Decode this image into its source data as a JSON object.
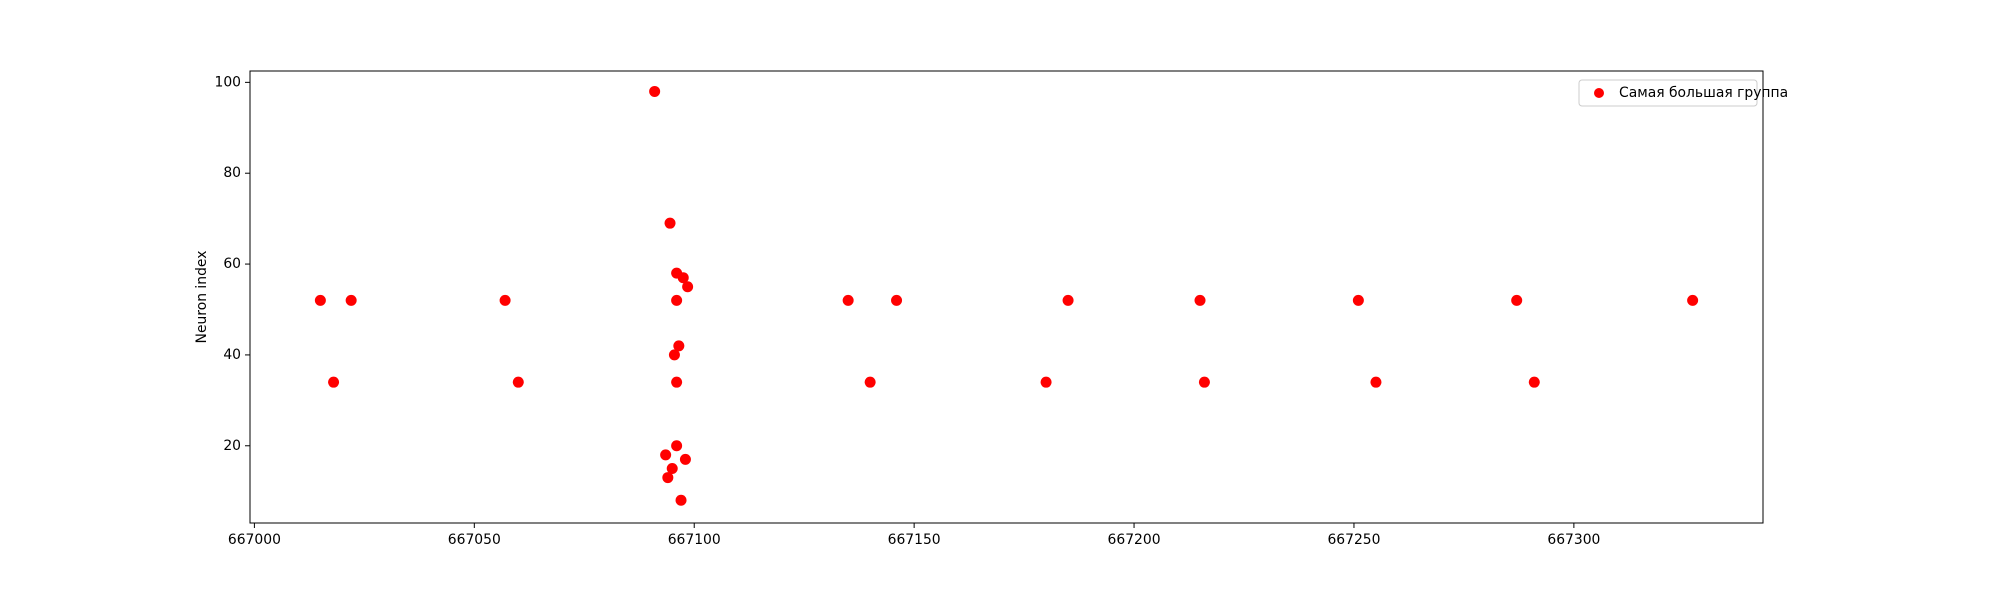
{
  "chart_data": {
    "type": "scatter",
    "title": "",
    "xlabel": "",
    "ylabel": "Neuron index",
    "xlim": [
      666999,
      667343
    ],
    "ylim": [
      3,
      102.5
    ],
    "x_ticks": [
      667000,
      667050,
      667100,
      667150,
      667200,
      667250,
      667300
    ],
    "x_tick_labels": [
      "667000",
      "667050",
      "667100",
      "667150",
      "667200",
      "667250",
      "667300"
    ],
    "y_ticks": [
      20,
      40,
      60,
      80,
      100
    ],
    "y_tick_labels": [
      "20",
      "40",
      "60",
      "80",
      "100"
    ],
    "grid": false,
    "legend": {
      "position": "upper right",
      "entries": [
        "Самая большая группа"
      ]
    },
    "series": [
      {
        "name": "Самая большая группа",
        "color": "#ff0000",
        "points": [
          {
            "x": 667015,
            "y": 52
          },
          {
            "x": 667018,
            "y": 34
          },
          {
            "x": 667022,
            "y": 52
          },
          {
            "x": 667057,
            "y": 52
          },
          {
            "x": 667060,
            "y": 34
          },
          {
            "x": 667091,
            "y": 98
          },
          {
            "x": 667093.5,
            "y": 18
          },
          {
            "x": 667094,
            "y": 13
          },
          {
            "x": 667094.5,
            "y": 69
          },
          {
            "x": 667095,
            "y": 15
          },
          {
            "x": 667095.5,
            "y": 40
          },
          {
            "x": 667096,
            "y": 58
          },
          {
            "x": 667096,
            "y": 52
          },
          {
            "x": 667096,
            "y": 34
          },
          {
            "x": 667096,
            "y": 20
          },
          {
            "x": 667096.5,
            "y": 42
          },
          {
            "x": 667097,
            "y": 8
          },
          {
            "x": 667097.5,
            "y": 57
          },
          {
            "x": 667098,
            "y": 17
          },
          {
            "x": 667098.5,
            "y": 55
          },
          {
            "x": 667135,
            "y": 52
          },
          {
            "x": 667140,
            "y": 34
          },
          {
            "x": 667146,
            "y": 52
          },
          {
            "x": 667180,
            "y": 34
          },
          {
            "x": 667185,
            "y": 52
          },
          {
            "x": 667215,
            "y": 52
          },
          {
            "x": 667216,
            "y": 34
          },
          {
            "x": 667251,
            "y": 52
          },
          {
            "x": 667255,
            "y": 34
          },
          {
            "x": 667287,
            "y": 52
          },
          {
            "x": 667291,
            "y": 34
          },
          {
            "x": 667327,
            "y": 52
          }
        ]
      }
    ]
  }
}
